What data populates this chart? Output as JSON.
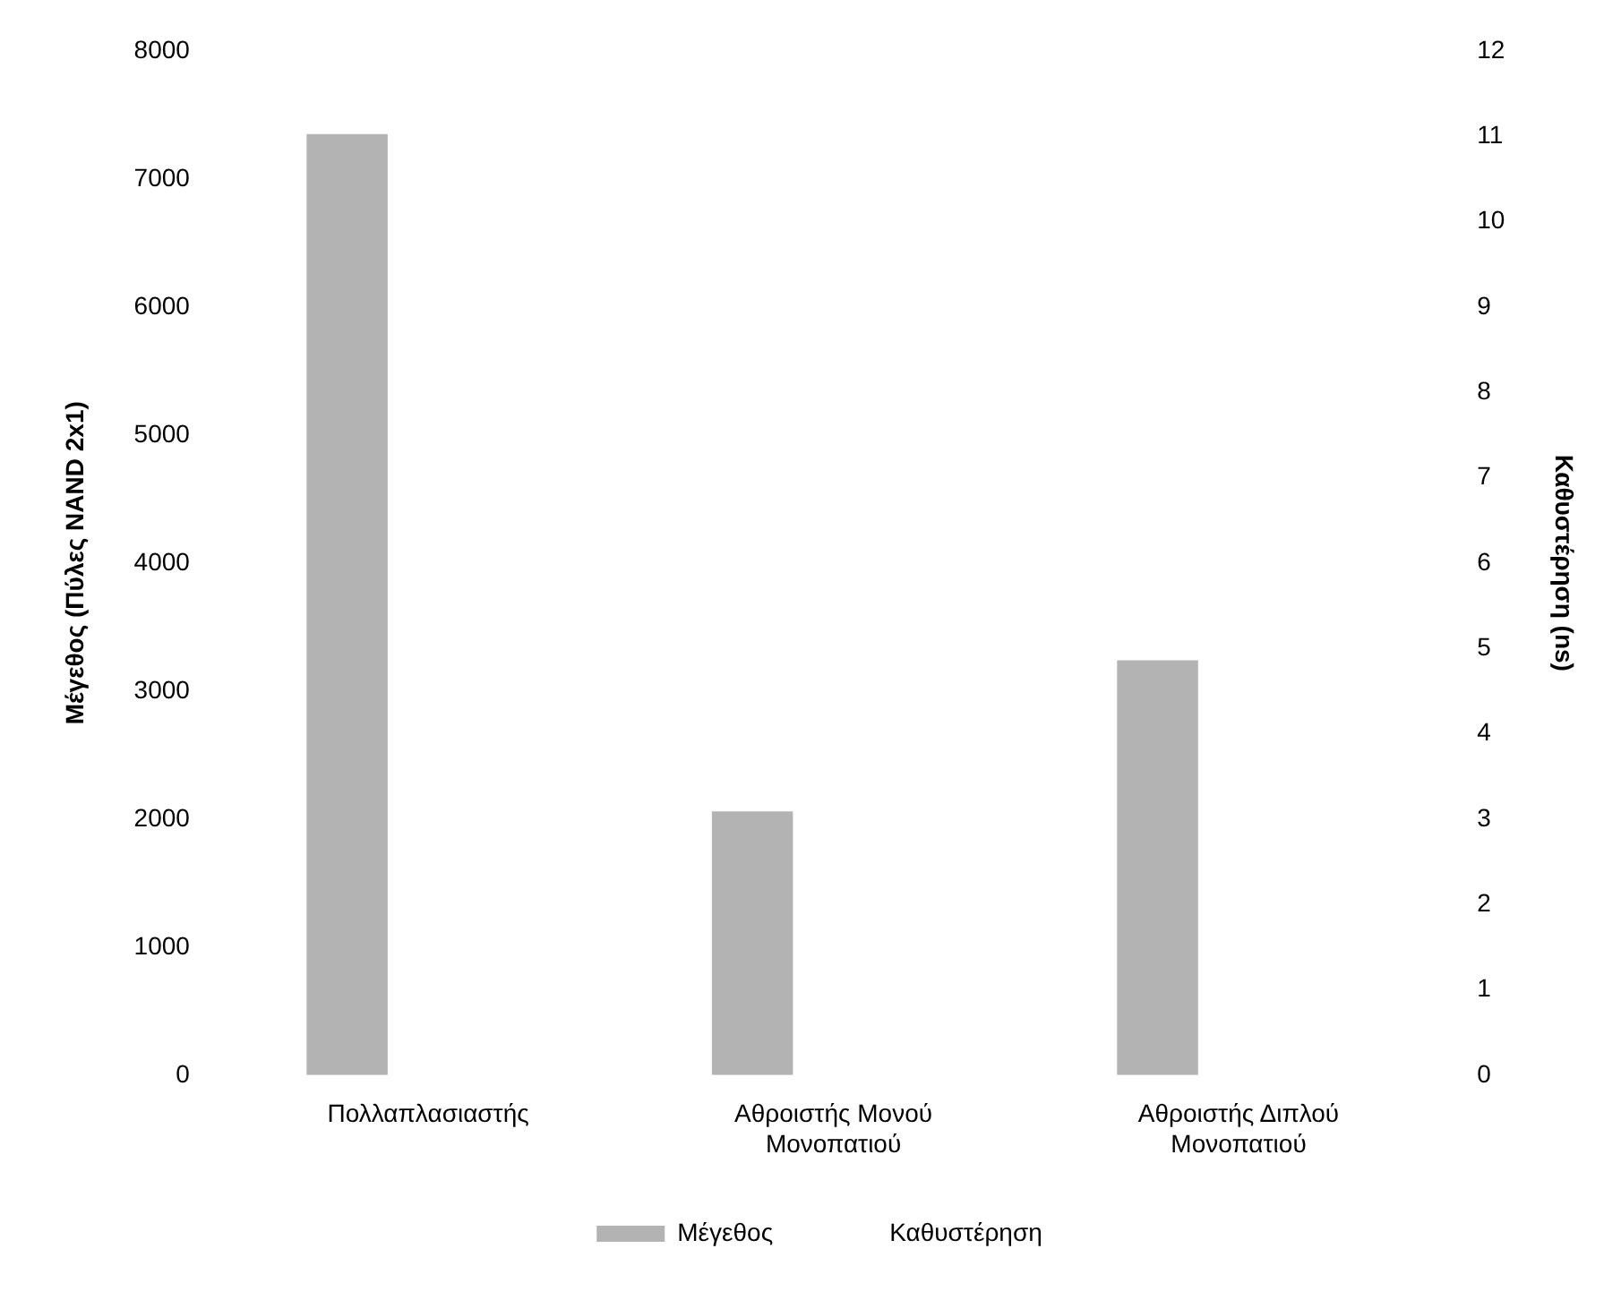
{
  "chart_data": {
    "type": "bar",
    "ylabel": "Μέγεθος (Πύλες NAND 2x1)",
    "y2label": "Καθυστέρηση (ns)",
    "categories": [
      "Πολλαπλασιαστής",
      "Αθροιστής Μονού Μονοπατιού",
      "Αθροιστής Διπλού Μονοπατιού"
    ],
    "series": [
      {
        "name": "Μέγεθος",
        "color": "#b3b3b3",
        "values": [
          7350,
          2060,
          3240
        ]
      },
      {
        "name": "Καθυστέρηση",
        "values": [
          null,
          null,
          null
        ]
      }
    ],
    "ylim": [
      0,
      8000
    ],
    "yticks": [
      0,
      1000,
      2000,
      3000,
      4000,
      5000,
      6000,
      7000,
      8000
    ],
    "y2lim": [
      0,
      12
    ],
    "y2ticks": [
      0,
      1,
      2,
      3,
      4,
      5,
      6,
      7,
      8,
      9,
      10,
      11,
      12
    ],
    "grid": false,
    "legend": "bottom"
  }
}
